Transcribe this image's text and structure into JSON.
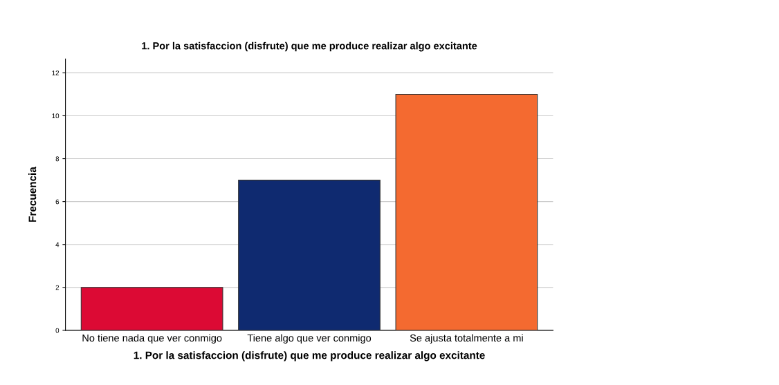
{
  "chart_data": {
    "type": "bar",
    "title": "1. Por la satisfaccion (disfrute) que me produce realizar algo excitante",
    "xlabel": "1. Por la satisfaccion (disfrute) que me produce realizar algo excitante",
    "ylabel": "Frecuencia",
    "categories": [
      "No tiene nada que ver conmigo",
      "Tiene algo que ver conmigo",
      "Se ajusta totalmente a mi"
    ],
    "values": [
      2,
      7,
      11
    ],
    "colors": [
      "#dc0a34",
      "#0f2a70",
      "#f46a30"
    ],
    "ylim": [
      0,
      12.65
    ],
    "yticks": [
      0,
      2,
      4,
      6,
      8,
      10,
      12
    ],
    "grid": "y"
  }
}
